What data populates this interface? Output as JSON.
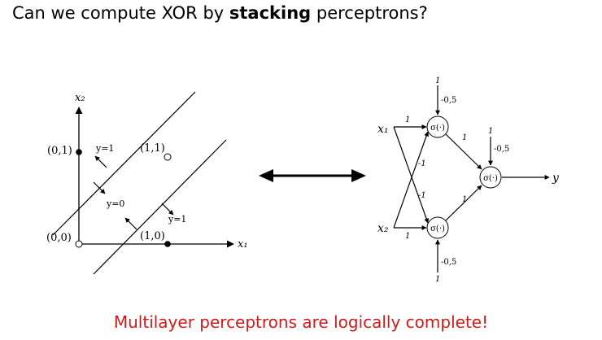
{
  "slide": {
    "title_prefix": "Can we compute XOR by ",
    "title_bold": "stacking",
    "title_suffix": " perceptrons?",
    "footer": "Multilayer perceptrons are logically complete!"
  },
  "left_plot": {
    "axis_x_label": "x₁",
    "axis_y_label": "x₂",
    "points": {
      "p00": "(0,0)",
      "p01": "(0,1)",
      "p10": "(1,0)",
      "p11": "(1,1)"
    },
    "region_labels": {
      "upper_y1": "y=1",
      "middle_y0": "y=0",
      "lower_y1": "y=1"
    }
  },
  "network": {
    "input1": "x₁",
    "input2": "x₂",
    "output": "y",
    "neuron_label": "σ(·)",
    "hidden_top": {
      "bias_input": "1",
      "bias_weight": "-0,5",
      "w_x1": "1",
      "w_x2": "-1",
      "w_out": "1"
    },
    "hidden_bottom": {
      "bias_input": "1",
      "bias_weight": "-0,5",
      "w_x1": "-1",
      "w_x2": "1",
      "w_out": "1"
    },
    "output_neuron": {
      "bias_input": "1",
      "bias_weight": "-0,5"
    }
  }
}
